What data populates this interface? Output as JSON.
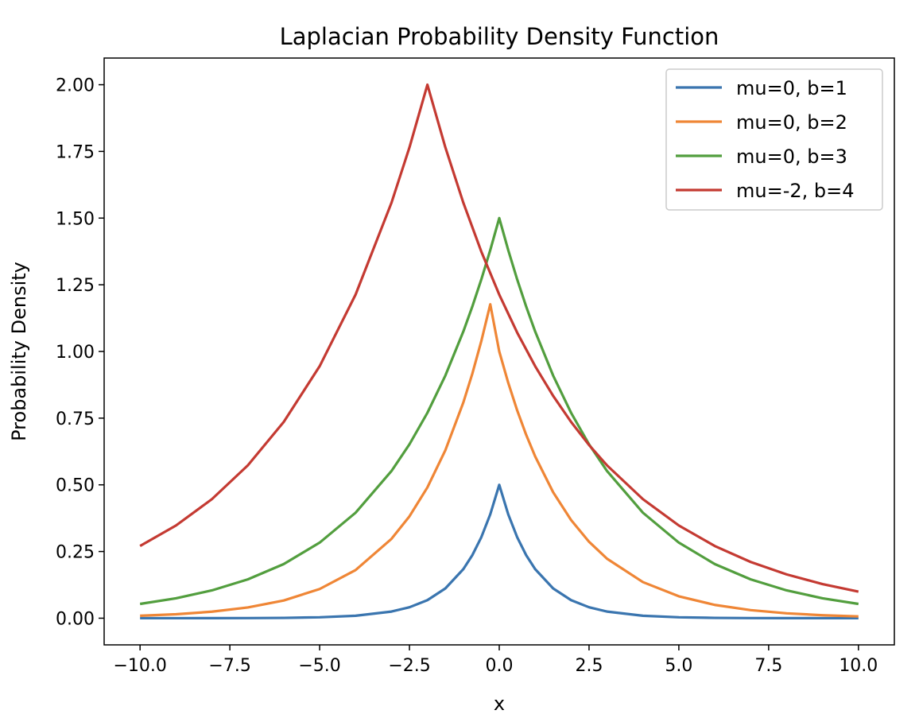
{
  "chart_data": {
    "type": "line",
    "title": "Laplacian Probability Density Function",
    "xlabel": "x",
    "ylabel": "Probability Density",
    "xlim": [
      -11,
      11
    ],
    "ylim": [
      -0.1,
      2.1
    ],
    "xticks": [
      -10.0,
      -7.5,
      -5.0,
      -2.5,
      0.0,
      2.5,
      5.0,
      7.5,
      10.0
    ],
    "xtick_labels": [
      "−10.0",
      "−7.5",
      "−5.0",
      "−2.5",
      "0.0",
      "2.5",
      "5.0",
      "7.5",
      "10.0"
    ],
    "yticks": [
      0.0,
      0.25,
      0.5,
      0.75,
      1.0,
      1.25,
      1.5,
      1.75,
      2.0
    ],
    "ytick_labels": [
      "0.00",
      "0.25",
      "0.50",
      "0.75",
      "1.00",
      "1.25",
      "1.50",
      "1.75",
      "2.00"
    ],
    "grid": false,
    "legend_position": "top-right",
    "series": [
      {
        "name": "mu=0, b=1",
        "color": "#3a75af",
        "x": [
          -10,
          -9,
          -8,
          -7,
          -6,
          -5,
          -4,
          -3,
          -2.5,
          -2,
          -1.5,
          -1,
          -0.75,
          -0.5,
          -0.25,
          0,
          0.25,
          0.5,
          0.75,
          1,
          1.5,
          2,
          2.5,
          3,
          4,
          5,
          6,
          7,
          8,
          9,
          10
        ],
        "y": [
          0.0,
          0.0001,
          0.0002,
          0.0005,
          0.0012,
          0.0034,
          0.0092,
          0.0249,
          0.041,
          0.0677,
          0.1116,
          0.1839,
          0.2362,
          0.3033,
          0.3894,
          0.5,
          0.3894,
          0.3033,
          0.2362,
          0.1839,
          0.1116,
          0.0677,
          0.041,
          0.0249,
          0.0092,
          0.0034,
          0.0012,
          0.0005,
          0.0002,
          0.0001,
          0.0
        ]
      },
      {
        "name": "mu=0, b=2",
        "color": "#ef8636",
        "x": [
          -10,
          -9,
          -8,
          -7,
          -6,
          -5,
          -4,
          -3,
          -2.5,
          -2,
          -1.5,
          -1,
          -0.75,
          -0.5,
          -0.25,
          0,
          0.25,
          0.5,
          0.75,
          1,
          1.5,
          2,
          2.5,
          3,
          4,
          5,
          6,
          7,
          8,
          9,
          10
        ],
        "y": [
          0.0091,
          0.0148,
          0.0244,
          0.0402,
          0.0664,
          0.1094,
          0.1804,
          0.2975,
          0.3819,
          0.4905,
          0.6297,
          0.8087,
          0.9163,
          1.0385,
          1.1767,
          1.0,
          0.8825,
          0.7788,
          0.6873,
          0.6065,
          0.4724,
          0.3679,
          0.2865,
          0.2231,
          0.1353,
          0.0821,
          0.0498,
          0.0302,
          0.0183,
          0.0111,
          0.0067
        ]
      },
      {
        "name": "mu=0, b=3",
        "color": "#529e3e",
        "x": [
          -10,
          -9,
          -8,
          -7,
          -6,
          -5,
          -4,
          -3,
          -2.5,
          -2,
          -1.5,
          -1,
          -0.75,
          -0.5,
          -0.25,
          0,
          0.25,
          0.5,
          0.75,
          1,
          1.5,
          2,
          2.5,
          3,
          4,
          5,
          6,
          7,
          8,
          9,
          10
        ],
        "y": [
          0.0535,
          0.0747,
          0.1043,
          0.1455,
          0.203,
          0.2833,
          0.3954,
          0.5518,
          0.6519,
          0.7701,
          0.9098,
          1.0748,
          1.1682,
          1.2697,
          1.3801,
          1.5,
          1.38,
          1.2697,
          1.1682,
          1.0748,
          0.9098,
          0.7701,
          0.6519,
          0.5518,
          0.3954,
          0.2833,
          0.203,
          0.1455,
          0.1043,
          0.0747,
          0.0535
        ]
      },
      {
        "name": "mu=-2, b=4",
        "color": "#c43a32",
        "x": [
          -10,
          -9,
          -8,
          -7,
          -6,
          -5,
          -4,
          -3,
          -2.5,
          -2,
          -1.5,
          -1,
          -0.5,
          0,
          0.5,
          1,
          1.5,
          2,
          2.5,
          3,
          4,
          5,
          6,
          7,
          8,
          9,
          10
        ],
        "y": [
          0.2707,
          0.3475,
          0.4463,
          0.573,
          0.7358,
          0.9447,
          1.2131,
          1.5576,
          1.765,
          2.0,
          1.765,
          1.5576,
          1.3746,
          1.2131,
          1.0705,
          0.9447,
          0.8337,
          0.7358,
          0.6493,
          0.573,
          0.4463,
          0.3475,
          0.2707,
          0.2108,
          0.1642,
          0.1279,
          0.0996
        ]
      }
    ]
  }
}
